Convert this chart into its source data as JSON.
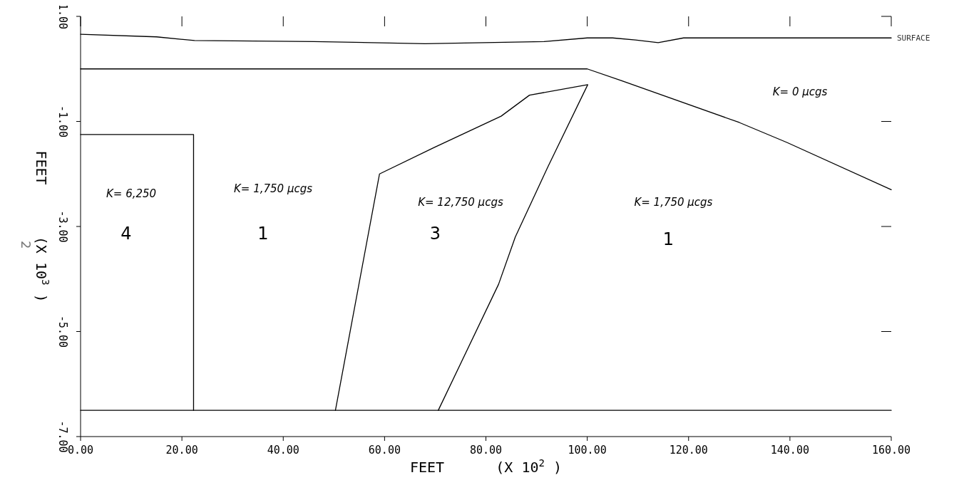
{
  "chart_data": {
    "type": "line",
    "xlabel": "FEET      (X 10$^{2}$ )",
    "ylabel": "FEET      (X 10$^{3}$ )",
    "xlim": [
      0,
      160
    ],
    "ylim": [
      -7,
      1
    ],
    "xticks": [
      {
        "value": 0,
        "label": "0.00"
      },
      {
        "value": 20,
        "label": "20.00"
      },
      {
        "value": 40,
        "label": "40.00"
      },
      {
        "value": 60,
        "label": "60.00"
      },
      {
        "value": 80,
        "label": "80.00"
      },
      {
        "value": 100,
        "label": "100.00"
      },
      {
        "value": 120,
        "label": "120.00"
      },
      {
        "value": 140,
        "label": "140.00"
      },
      {
        "value": 160,
        "label": "160.00"
      }
    ],
    "yticks": [
      {
        "value": 1,
        "label": "1.00"
      },
      {
        "value": -1,
        "label": "-1.00"
      },
      {
        "value": -3,
        "label": "-3.00"
      },
      {
        "value": -5,
        "label": "-5.00"
      },
      {
        "value": -7,
        "label": "-7.00"
      }
    ],
    "grid": false,
    "marker": "none",
    "line_style": "solid",
    "series": [
      {
        "name": "SURFACE",
        "color": "#000000",
        "x": [
          0,
          15,
          22.5,
          46,
          68,
          91.5,
          100,
          105,
          109.5,
          114,
          119,
          160
        ],
        "values": [
          0.66,
          0.61,
          0.54,
          0.52,
          0.48,
          0.52,
          0.59,
          0.59,
          0.55,
          0.5,
          0.59,
          0.59
        ]
      },
      {
        "color": "#000000",
        "x": [
          0,
          100,
          106.6,
          130,
          139.4,
          160
        ],
        "values": [
          0,
          0,
          -0.22,
          -1.02,
          -1.4,
          -2.3
        ]
      },
      {
        "color": "#000000",
        "x": [
          0,
          22.3,
          22.3
        ],
        "values": [
          -1.25,
          -1.25,
          -6.5
        ]
      },
      {
        "color": "#000000",
        "x": [
          0,
          160
        ],
        "values": [
          -6.5,
          -6.5
        ]
      },
      {
        "color": "#000000",
        "x": [
          50.3,
          59,
          69.7,
          83,
          88.6,
          100.1,
          92.3,
          85.8,
          82.5,
          70.6
        ],
        "values": [
          -6.5,
          -2,
          -1.5,
          -0.9,
          -0.5,
          -0.3,
          -1.85,
          -3.2,
          -4.1,
          -6.5
        ]
      }
    ],
    "annotations": [
      "K= 6,250",
      "4",
      "K= 1,750 μcgs",
      "1",
      "K= 12,750 μcgs",
      "3",
      "K= 1,750 μcgs",
      "1",
      "K= 0 μcgs",
      "2"
    ]
  }
}
